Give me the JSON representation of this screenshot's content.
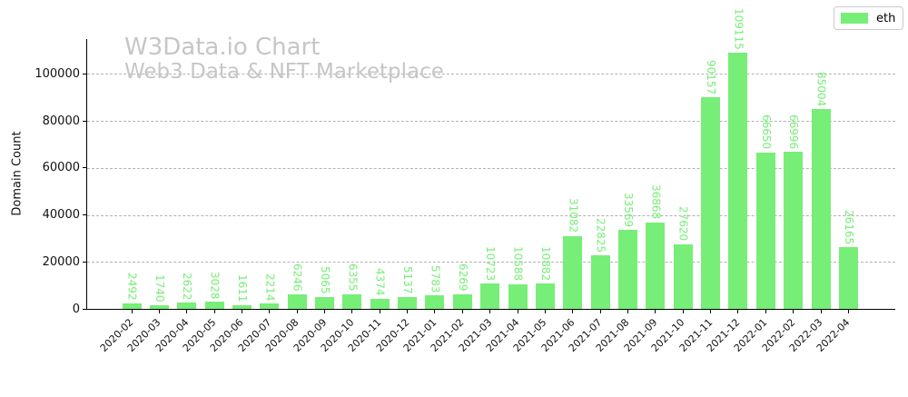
{
  "watermark": {
    "title": "W3Data.io Chart",
    "subtitle": "Web3 Data & NFT Marketplace"
  },
  "legend": {
    "label": "eth",
    "swatch_color": "#77ee77",
    "position": "top-right"
  },
  "colors": {
    "bar": "#77ee77",
    "value_label": "#77ee77",
    "gridline": "#b3b3b3",
    "axis": "#000000",
    "watermark": "#c6c6c6",
    "background": "#ffffff"
  },
  "chart_data": {
    "type": "bar",
    "title": "W3Data.io Chart",
    "subtitle": "Web3 Data & NFT Marketplace",
    "xlabel": "",
    "ylabel": "Domain Count",
    "ylim": [
      0,
      115000
    ],
    "yticks": [
      0,
      20000,
      40000,
      60000,
      80000,
      100000
    ],
    "grid": "horizontal-dashed",
    "legend_position": "top-right",
    "categories": [
      "2020-02",
      "2020-03",
      "2020-04",
      "2020-05",
      "2020-06",
      "2020-07",
      "2020-08",
      "2020-09",
      "2020-10",
      "2020-11",
      "2020-12",
      "2021-01",
      "2021-02",
      "2021-03",
      "2021-04",
      "2021-05",
      "2021-06",
      "2021-07",
      "2021-08",
      "2021-09",
      "2021-10",
      "2021-11",
      "2021-12",
      "2022-01",
      "2022-02",
      "2022-03",
      "2022-04"
    ],
    "series": [
      {
        "name": "eth",
        "values": [
          2492,
          1740,
          2622,
          3028,
          1611,
          2214,
          6246,
          5065,
          6355,
          4374,
          5137,
          5783,
          6269,
          10723,
          10588,
          10882,
          31082,
          22825,
          33569,
          36868,
          27620,
          90157,
          109115,
          66650,
          66996,
          85004,
          26165
        ]
      }
    ],
    "value_labels": "rotated-90-above-bars"
  }
}
